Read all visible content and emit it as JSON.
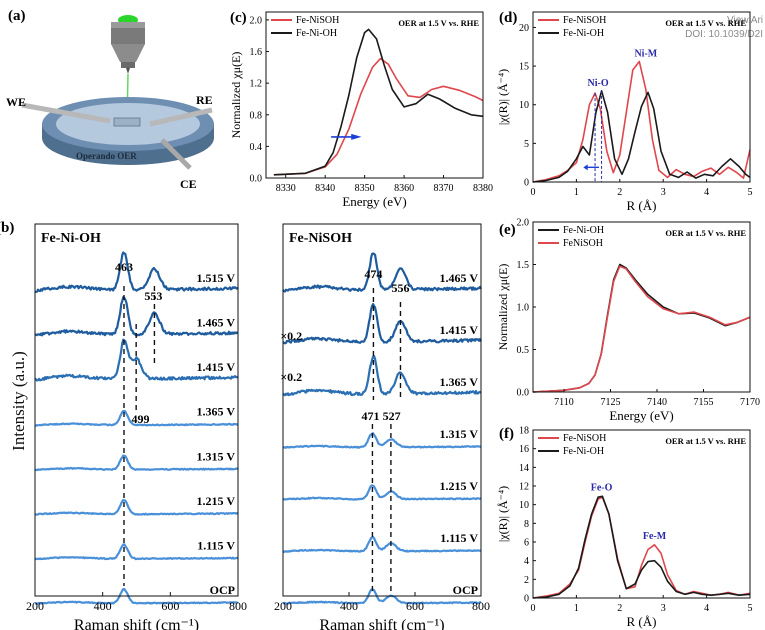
{
  "watermark": {
    "line1": "View Ari",
    "line2": "DOI: 10.1039/D2I"
  },
  "panel_a": {
    "tag": "(a)",
    "labels": {
      "we": "WE",
      "re": "RE",
      "ce": "CE",
      "cell": "Operando OER"
    }
  },
  "panel_b": {
    "tag": "(b)",
    "ylabel": "Intensity (a.u.)"
  },
  "chart_data": [
    {
      "id": "b_left",
      "type": "line",
      "title": "Fe-Ni-OH",
      "xlabel": "Raman shift (cm⁻¹)",
      "xlim": [
        200,
        800
      ],
      "xticks": [
        200,
        400,
        600,
        800
      ],
      "series": [
        {
          "name": "1.515 V",
          "color": "#1f5c9e",
          "peaks": [
            463,
            553
          ]
        },
        {
          "name": "1.465 V",
          "color": "#1f5c9e",
          "peaks": [
            463,
            553
          ]
        },
        {
          "name": "1.415 V",
          "color": "#2b6fb3",
          "peaks": [
            463,
            499
          ]
        },
        {
          "name": "1.365 V",
          "color": "#4a90d9",
          "peaks": [
            463
          ]
        },
        {
          "name": "1.315 V",
          "color": "#4a90d9",
          "peaks": [
            463
          ]
        },
        {
          "name": "1.215 V",
          "color": "#4a90d9",
          "peaks": [
            463
          ]
        },
        {
          "name": "1.115 V",
          "color": "#4a90d9",
          "peaks": [
            463
          ]
        },
        {
          "name": "OCP",
          "color": "#4a90d9",
          "peaks": [
            463
          ]
        }
      ],
      "annotations": [
        "463",
        "553",
        "499"
      ]
    },
    {
      "id": "b_right",
      "type": "line",
      "title": "Fe-NiSOH",
      "xlabel": "Raman shift (cm⁻¹)",
      "xlim": [
        200,
        800
      ],
      "xticks": [
        200,
        400,
        600,
        800
      ],
      "series": [
        {
          "name": "1.465 V",
          "color": "#1f5c9e",
          "peaks": [
            474,
            556
          ]
        },
        {
          "name": "1.415 V",
          "color": "#1f5c9e",
          "peaks": [
            474,
            556
          ]
        },
        {
          "name": "1.365 V",
          "color": "#2b6fb3",
          "peaks": [
            474,
            556
          ]
        },
        {
          "name": "1.315 V",
          "color": "#4a90d9",
          "peaks": [
            471,
            527
          ]
        },
        {
          "name": "1.215 V",
          "color": "#4a90d9",
          "peaks": [
            471,
            527
          ]
        },
        {
          "name": "1.115 V",
          "color": "#4a90d9",
          "peaks": [
            471,
            527
          ]
        },
        {
          "name": "OCP",
          "color": "#4a90d9",
          "peaks": [
            471,
            527
          ]
        }
      ],
      "annotations": [
        "474",
        "556",
        "×0.2",
        "×0.2",
        "471",
        "527"
      ]
    },
    {
      "id": "c",
      "type": "line",
      "tag": "(c)",
      "note": "OER at 1.5 V vs. RHE",
      "xlabel": "Energy (eV)",
      "ylabel": "Normalized χμ(E)",
      "xlim": [
        8325,
        8380
      ],
      "ylim": [
        0,
        2.1
      ],
      "xticks": [
        8330,
        8340,
        8350,
        8360,
        8370,
        8380
      ],
      "yticks": [
        0.0,
        0.4,
        0.8,
        1.2,
        1.6,
        2.0
      ],
      "series": [
        {
          "name": "Fe-NiSOH",
          "color": "#e0474c",
          "x": [
            8327,
            8335,
            8340,
            8343,
            8346,
            8349,
            8352,
            8354,
            8356,
            8358,
            8361,
            8364,
            8367,
            8370,
            8374,
            8378,
            8380
          ],
          "y": [
            0.04,
            0.06,
            0.14,
            0.3,
            0.62,
            1.06,
            1.4,
            1.51,
            1.44,
            1.26,
            1.04,
            1.02,
            1.12,
            1.16,
            1.11,
            1.03,
            0.98
          ]
        },
        {
          "name": "Fe-Ni-OH",
          "color": "#1a1a1a",
          "x": [
            8327,
            8335,
            8340,
            8342,
            8344,
            8346,
            8348,
            8350,
            8351,
            8353,
            8355,
            8357,
            8360,
            8363,
            8366,
            8369,
            8373,
            8377,
            8380
          ],
          "y": [
            0.04,
            0.06,
            0.15,
            0.32,
            0.65,
            1.05,
            1.52,
            1.84,
            1.88,
            1.76,
            1.42,
            1.12,
            0.9,
            0.94,
            1.06,
            1.0,
            0.88,
            0.8,
            0.78
          ]
        }
      ]
    },
    {
      "id": "d",
      "type": "line",
      "tag": "(d)",
      "note": "OER at 1.5 V vs. RHE",
      "xlabel": "R (Å)",
      "ylabel": "|χ(R)| (Å⁻⁴)",
      "xlim": [
        0,
        5
      ],
      "ylim": [
        0,
        22
      ],
      "xticks": [
        0,
        1,
        2,
        3,
        4,
        5
      ],
      "yticks": [
        0,
        5,
        10,
        15,
        20
      ],
      "annotations": [
        "Ni-O",
        "Ni-M"
      ],
      "series": [
        {
          "name": "Fe-NiSOH",
          "color": "#e0474c",
          "x": [
            0,
            0.3,
            0.6,
            0.8,
            1.0,
            1.15,
            1.3,
            1.43,
            1.55,
            1.7,
            1.85,
            2.0,
            2.15,
            2.3,
            2.45,
            2.6,
            2.75,
            2.9,
            3.1,
            3.3,
            3.5,
            3.7,
            3.9,
            4.1,
            4.3,
            4.5,
            4.7,
            4.85,
            5.0
          ],
          "y": [
            0,
            0.3,
            0.8,
            1.5,
            2.5,
            5.5,
            10,
            11.5,
            9.5,
            4,
            1.2,
            3.5,
            9,
            14.5,
            15.6,
            12,
            5.5,
            1.5,
            0.6,
            1.6,
            1.0,
            0.7,
            1.4,
            1.8,
            1.0,
            1.9,
            1.2,
            0.5,
            4.2
          ]
        },
        {
          "name": "Fe-Ni-OH",
          "color": "#1a1a1a",
          "x": [
            0,
            0.3,
            0.6,
            0.8,
            1.0,
            1.15,
            1.3,
            1.45,
            1.58,
            1.72,
            1.88,
            2.05,
            2.2,
            2.35,
            2.5,
            2.65,
            2.78,
            2.95,
            3.15,
            3.35,
            3.55,
            3.75,
            3.95,
            4.15,
            4.35,
            4.55,
            4.75,
            4.9,
            5.0
          ],
          "y": [
            0,
            0.2,
            0.6,
            1.4,
            3.0,
            4.6,
            3.5,
            9,
            11.8,
            9,
            3,
            1.0,
            3.0,
            6.5,
            9.8,
            11.6,
            9.5,
            4,
            1.0,
            0.6,
            1.3,
            0.5,
            1.0,
            0.8,
            2.0,
            3.0,
            2.0,
            1.0,
            0.6
          ]
        }
      ]
    },
    {
      "id": "e",
      "type": "line",
      "tag": "(e)",
      "note": "OER at 1.5 V vs. RHE",
      "xlabel": "Energy (eV)",
      "ylabel": "Normalized χμ(E)",
      "xlim": [
        7100,
        7170
      ],
      "ylim": [
        0,
        2.0
      ],
      "xticks": [
        7110,
        7125,
        7140,
        7155,
        7170
      ],
      "yticks": [
        0.0,
        0.5,
        1.0,
        1.5,
        2.0
      ],
      "series": [
        {
          "name": "Fe-Ni-OH",
          "color": "#1a1a1a",
          "x": [
            7100,
            7110,
            7115,
            7118,
            7120,
            7122,
            7124,
            7126,
            7128,
            7130,
            7133,
            7137,
            7142,
            7147,
            7152,
            7157,
            7162,
            7166,
            7170
          ],
          "y": [
            0.0,
            0.02,
            0.05,
            0.1,
            0.2,
            0.45,
            0.9,
            1.32,
            1.5,
            1.46,
            1.32,
            1.15,
            1.0,
            0.92,
            0.93,
            0.87,
            0.78,
            0.82,
            0.88
          ]
        },
        {
          "name": "FeNiSOH",
          "color": "#e0474c",
          "x": [
            7100,
            7110,
            7115,
            7118,
            7120,
            7122,
            7124,
            7126,
            7128,
            7130,
            7133,
            7137,
            7142,
            7147,
            7152,
            7157,
            7162,
            7166,
            7170
          ],
          "y": [
            0.0,
            0.02,
            0.05,
            0.1,
            0.2,
            0.44,
            0.88,
            1.3,
            1.48,
            1.45,
            1.3,
            1.12,
            0.98,
            0.92,
            0.94,
            0.88,
            0.79,
            0.82,
            0.88
          ]
        }
      ]
    },
    {
      "id": "f",
      "type": "line",
      "tag": "(f)",
      "note": "OER at 1.5 V vs. RHE",
      "xlabel": "R (Å)",
      "ylabel": "|χ(R)| (Å⁻⁴)",
      "xlim": [
        0,
        5
      ],
      "ylim": [
        0,
        18
      ],
      "xticks": [
        0,
        1,
        2,
        3,
        4,
        5
      ],
      "yticks": [
        0,
        2,
        4,
        6,
        8,
        10,
        12,
        14,
        16,
        18
      ],
      "annotations": [
        "Fe-O",
        "Fe-M"
      ],
      "series": [
        {
          "name": "Fe-NiSOH",
          "color": "#e0474c",
          "x": [
            0,
            0.3,
            0.6,
            0.85,
            1.05,
            1.2,
            1.35,
            1.5,
            1.6,
            1.75,
            1.95,
            2.15,
            2.35,
            2.5,
            2.65,
            2.8,
            2.95,
            3.1,
            3.3,
            3.5,
            3.7,
            3.9,
            4.1,
            4.3,
            4.5,
            4.75,
            5.0
          ],
          "y": [
            0,
            0.2,
            0.5,
            1.5,
            3.0,
            6.0,
            8.8,
            10.6,
            10.8,
            9.0,
            4.2,
            1.0,
            1.2,
            3.5,
            5.2,
            5.7,
            4.8,
            2.5,
            0.8,
            0.4,
            0.7,
            0.5,
            0.3,
            0.4,
            0.6,
            0.3,
            0.5
          ]
        },
        {
          "name": "Fe-Ni-OH",
          "color": "#1a1a1a",
          "x": [
            0,
            0.3,
            0.6,
            0.85,
            1.05,
            1.2,
            1.35,
            1.5,
            1.6,
            1.75,
            1.95,
            2.15,
            2.35,
            2.5,
            2.65,
            2.8,
            2.95,
            3.1,
            3.3,
            3.5,
            3.7,
            3.9,
            4.1,
            4.3,
            4.5,
            4.75,
            5.0
          ],
          "y": [
            0,
            0.1,
            0.4,
            1.3,
            3.2,
            6.3,
            9.0,
            10.8,
            10.9,
            9.0,
            4.0,
            1.0,
            1.5,
            3.0,
            3.9,
            4.0,
            3.3,
            1.8,
            0.7,
            0.4,
            0.6,
            0.4,
            0.3,
            0.4,
            0.5,
            0.3,
            0.4
          ]
        }
      ]
    }
  ]
}
